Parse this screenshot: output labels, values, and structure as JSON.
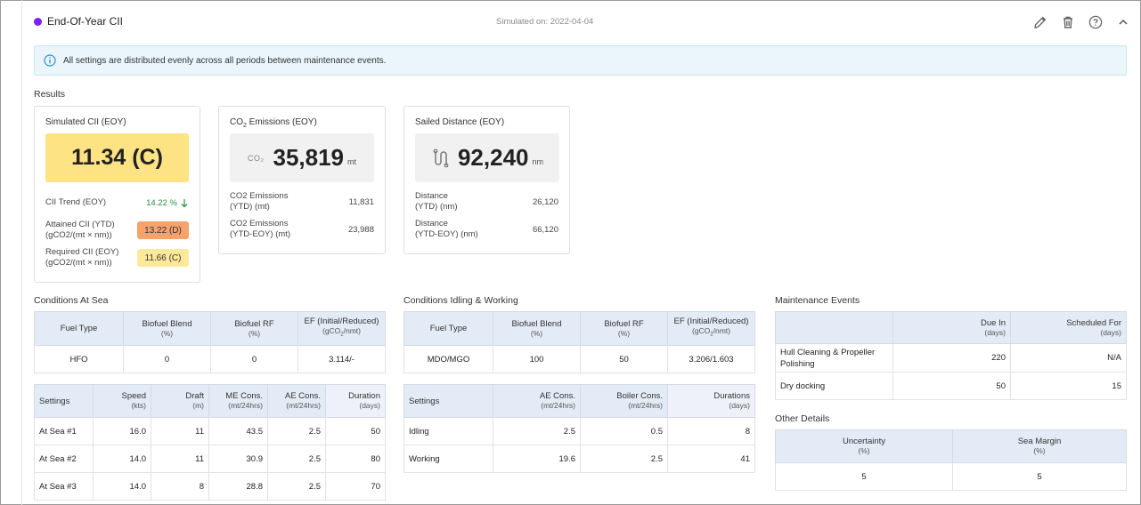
{
  "header": {
    "title": "End-Of-Year CII",
    "simulated_on": "Simulated on: 2022-04-04",
    "dot_color": "#7c1ff0",
    "icons": [
      "pencil-icon",
      "trash-icon",
      "help-icon",
      "chevron-up-icon"
    ]
  },
  "info": {
    "text": "All settings are distributed evenly across all periods between maintenance events."
  },
  "results": {
    "label": "Results",
    "cii": {
      "title": "Simulated CII (EOY)",
      "value": "11.34 (C)",
      "trend_label": "CII Trend (EOY)",
      "trend_value": "14.22 %",
      "attained_label_1": "Attained CII (YTD)",
      "attained_label_2": "(gCO2/(mt × nm))",
      "attained_value": "13.22 (D)",
      "required_label_1": "Required CII (EOY)",
      "required_label_2": "(gCO2/(mt × nm))",
      "required_value": "11.66 (C)"
    },
    "co2": {
      "title_pre": "CO",
      "title_sub": "2",
      "title_post": " Emissions (EOY)",
      "icon_text": "CO₂",
      "value": "35,819",
      "unit": "mt",
      "r1_label_1": "CO2 Emissions",
      "r1_label_2": "(YTD) (mt)",
      "r1_value": "11,831",
      "r2_label_1": "CO2 Emissions",
      "r2_label_2": "(YTD-EOY) (mt)",
      "r2_value": "23,988"
    },
    "distance": {
      "title": "Sailed Distance (EOY)",
      "value": "92,240",
      "unit": "nm",
      "r1_label_1": "Distance",
      "r1_label_2": "(YTD) (nm)",
      "r1_value": "26,120",
      "r2_label_1": "Distance",
      "r2_label_2": "(YTD-EOY) (nm)",
      "r2_value": "66,120"
    }
  },
  "colors": {
    "cii_yellow": "#fde384",
    "attained_orange": "#f5a26b",
    "required_yellow": "#fde99a",
    "trend_green": "#2f8f3f"
  },
  "sea": {
    "label": "Conditions At Sea",
    "fuel_headers": [
      "Fuel Type",
      "Biofuel Blend",
      "Biofuel RF",
      "EF (Initial/Reduced)"
    ],
    "fuel_units": [
      "",
      "(%)",
      "(%)",
      "(gCO2/nmt)"
    ],
    "fuel_row": [
      "HFO",
      "0",
      "0",
      "3.114/-"
    ],
    "set_headers": [
      "Settings",
      "Speed",
      "Draft",
      "ME Cons.",
      "AE Cons.",
      "Duration"
    ],
    "set_units": [
      "",
      "(kts)",
      "(m)",
      "(mt/24hrs)",
      "(mt/24hrs)",
      "(days)"
    ],
    "rows": [
      [
        "At Sea #1",
        "16.0",
        "11",
        "43.5",
        "2.5",
        "50"
      ],
      [
        "At Sea #2",
        "14.0",
        "11",
        "30.9",
        "2.5",
        "80"
      ],
      [
        "At Sea #3",
        "14.0",
        "8",
        "28.8",
        "2.5",
        "70"
      ]
    ]
  },
  "idle": {
    "label": "Conditions Idling & Working",
    "fuel_headers": [
      "Fuel Type",
      "Biofuel Blend",
      "Biofuel RF",
      "EF (Initial/Reduced)"
    ],
    "fuel_units": [
      "",
      "(%)",
      "(%)",
      "(gCO2/nmt)"
    ],
    "fuel_row": [
      "MDO/MGO",
      "100",
      "50",
      "3.206/1.603"
    ],
    "set_headers": [
      "Settings",
      "AE Cons.",
      "Boiler Cons.",
      "Durations"
    ],
    "set_units": [
      "",
      "(mt/24hrs)",
      "(mt/24hrs)",
      "(days)"
    ],
    "rows": [
      [
        "Idling",
        "2.5",
        "0.5",
        "8"
      ],
      [
        "Working",
        "19.6",
        "2.5",
        "41"
      ]
    ]
  },
  "maintenance": {
    "label": "Maintenance Events",
    "headers": [
      "",
      "Due In",
      "Scheduled For"
    ],
    "units": [
      "",
      "(days)",
      "(days)"
    ],
    "rows": [
      [
        "Hull Cleaning & Propeller Polishing",
        "220",
        "N/A"
      ],
      [
        "Dry docking",
        "50",
        "15"
      ]
    ]
  },
  "other": {
    "label": "Other Details",
    "headers": [
      "Uncertainty",
      "Sea Margin"
    ],
    "units": [
      "(%)",
      "(%)"
    ],
    "row": [
      "5",
      "5"
    ]
  }
}
